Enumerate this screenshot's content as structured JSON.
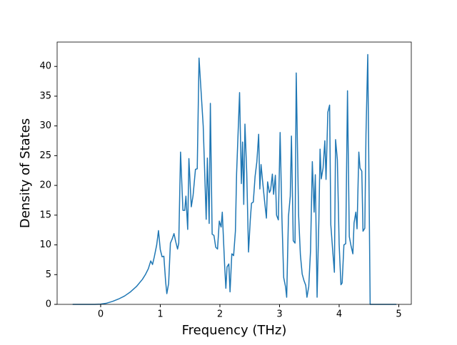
{
  "chart_data": {
    "type": "line",
    "xlabel": "Frequency (THz)",
    "ylabel": "Density of States",
    "color": "#1f77b4",
    "xlim": [
      -0.73,
      5.21
    ],
    "ylim": [
      0,
      44.1
    ],
    "xticks": [
      0,
      1,
      2,
      3,
      4,
      5
    ],
    "yticks": [
      0,
      5,
      10,
      15,
      20,
      25,
      30,
      35,
      40
    ],
    "x": [
      -0.47,
      -0.3,
      -0.1,
      0.0,
      0.1,
      0.2,
      0.3,
      0.4,
      0.5,
      0.6,
      0.7,
      0.75,
      0.8,
      0.84,
      0.87,
      0.9,
      0.94,
      0.97,
      1.0,
      1.03,
      1.06,
      1.09,
      1.11,
      1.14,
      1.17,
      1.2,
      1.23,
      1.26,
      1.29,
      1.31,
      1.34,
      1.38,
      1.41,
      1.43,
      1.46,
      1.48,
      1.52,
      1.55,
      1.59,
      1.62,
      1.65,
      1.72,
      1.77,
      1.79,
      1.82,
      1.84,
      1.87,
      1.9,
      1.93,
      1.96,
      1.99,
      2.02,
      2.04,
      2.08,
      2.1,
      2.12,
      2.15,
      2.17,
      2.2,
      2.23,
      2.26,
      2.28,
      2.33,
      2.36,
      2.38,
      2.4,
      2.42,
      2.45,
      2.48,
      2.51,
      2.53,
      2.56,
      2.59,
      2.62,
      2.65,
      2.67,
      2.69,
      2.72,
      2.75,
      2.78,
      2.8,
      2.83,
      2.85,
      2.88,
      2.9,
      2.93,
      2.95,
      2.98,
      3.01,
      3.04,
      3.07,
      3.1,
      3.12,
      3.15,
      3.18,
      3.2,
      3.23,
      3.26,
      3.28,
      3.32,
      3.35,
      3.38,
      3.41,
      3.44,
      3.46,
      3.49,
      3.52,
      3.55,
      3.58,
      3.6,
      3.63,
      3.66,
      3.68,
      3.7,
      3.73,
      3.76,
      3.78,
      3.81,
      3.84,
      3.86,
      3.89,
      3.92,
      3.94,
      3.97,
      4.0,
      4.03,
      4.05,
      4.08,
      4.11,
      4.14,
      4.17,
      4.2,
      4.23,
      4.25,
      4.28,
      4.3,
      4.33,
      4.35,
      4.38,
      4.4,
      4.43,
      4.45,
      4.48,
      4.52,
      4.7,
      4.96
    ],
    "values": [
      0,
      0,
      0,
      0.05,
      0.2,
      0.5,
      0.9,
      1.4,
      2.1,
      3.0,
      4.2,
      5.0,
      6.0,
      7.3,
      6.7,
      8.0,
      10.0,
      12.4,
      9.2,
      8.0,
      8.1,
      3.8,
      1.8,
      3.5,
      10.3,
      11.0,
      11.9,
      10.5,
      9.3,
      10.3,
      25.6,
      15.8,
      15.8,
      18.2,
      12.6,
      24.5,
      16.4,
      18.3,
      22.7,
      22.8,
      41.4,
      30.0,
      14.3,
      24.6,
      13.6,
      33.8,
      11.8,
      11.6,
      9.6,
      9.3,
      14.0,
      13.0,
      15.5,
      6.4,
      2.7,
      6.3,
      6.8,
      2.1,
      8.5,
      8.2,
      12.3,
      22.0,
      35.6,
      20.3,
      27.3,
      16.8,
      30.3,
      22.1,
      8.8,
      14.3,
      17.0,
      17.2,
      21.5,
      24.0,
      28.6,
      19.4,
      23.5,
      20.3,
      17.3,
      14.5,
      20.6,
      18.8,
      19.2,
      21.9,
      18.5,
      21.7,
      15.0,
      14.2,
      28.9,
      14.6,
      4.5,
      3.0,
      1.2,
      14.8,
      18.2,
      28.3,
      10.7,
      10.3,
      38.9,
      15.0,
      8.3,
      5.1,
      4.0,
      3.2,
      1.2,
      3.0,
      9.0,
      24.0,
      15.5,
      21.8,
      1.2,
      14.2,
      26.1,
      21.1,
      22.9,
      27.5,
      21.0,
      32.3,
      33.5,
      13.4,
      9.3,
      5.4,
      27.7,
      24.3,
      10.1,
      3.3,
      3.6,
      10.0,
      10.2,
      35.9,
      11.4,
      9.8,
      8.5,
      13.7,
      15.5,
      12.7,
      25.6,
      22.9,
      22.4,
      12.3,
      12.8,
      28.6,
      42.0,
      0,
      0,
      0
    ]
  }
}
